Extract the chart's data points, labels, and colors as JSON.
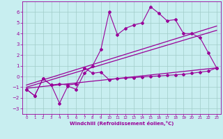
{
  "xlabel": "Windchill (Refroidissement éolien,°C)",
  "bg_color": "#c8eef0",
  "grid_color": "#a0ccc8",
  "line_color": "#990099",
  "xlim": [
    -0.5,
    23.5
  ],
  "ylim": [
    -3.5,
    7.0
  ],
  "xticks": [
    0,
    1,
    2,
    3,
    4,
    5,
    6,
    7,
    8,
    9,
    10,
    11,
    12,
    13,
    14,
    15,
    16,
    17,
    18,
    19,
    20,
    21,
    22,
    23
  ],
  "yticks": [
    -3,
    -2,
    -1,
    0,
    1,
    2,
    3,
    4,
    5,
    6
  ],
  "line1_x": [
    0,
    1,
    2,
    3,
    4,
    5,
    6,
    7,
    8,
    9,
    10,
    11,
    12,
    13,
    14,
    15,
    16,
    17,
    18,
    19,
    20,
    21,
    22,
    23
  ],
  "line1_y": [
    -1.2,
    -1.8,
    -0.2,
    -0.8,
    -2.5,
    -0.9,
    -1.2,
    0.3,
    1.0,
    2.5,
    6.0,
    3.9,
    4.5,
    4.8,
    5.0,
    6.5,
    5.9,
    5.2,
    5.3,
    4.0,
    4.0,
    3.6,
    2.2,
    0.8
  ],
  "line2_x": [
    0,
    1,
    2,
    3,
    4,
    5,
    6,
    7,
    8,
    9,
    10,
    11,
    12,
    13,
    14,
    15,
    16,
    17,
    18,
    19,
    20,
    21,
    22,
    23
  ],
  "line2_y": [
    -1.2,
    -1.8,
    -0.2,
    -0.8,
    -0.7,
    -0.8,
    -0.7,
    0.8,
    0.3,
    0.4,
    -0.3,
    -0.2,
    -0.15,
    -0.1,
    -0.05,
    0.0,
    0.05,
    0.1,
    0.15,
    0.2,
    0.3,
    0.4,
    0.5,
    0.8
  ],
  "line3_x": [
    0,
    23
  ],
  "line3_y": [
    -1.0,
    4.3
  ],
  "line4_x": [
    0,
    23
  ],
  "line4_y": [
    -0.8,
    4.7
  ],
  "line5_x": [
    0,
    23
  ],
  "line5_y": [
    -1.1,
    0.8
  ]
}
